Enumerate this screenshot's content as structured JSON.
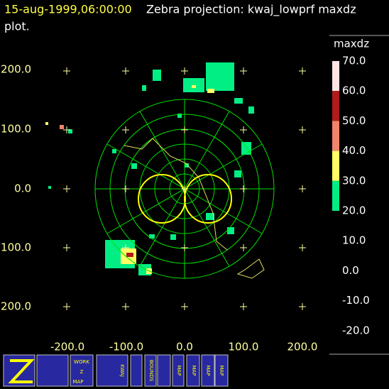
{
  "header": {
    "timestamp": "15-aug-1999,06:00:00",
    "title_lines": [
      "Zebra projection: kwaj_lowprf maxdz",
      "plot."
    ]
  },
  "axes": {
    "x_labels": [
      "-200.0",
      "-100.0",
      "0.0",
      "100.0",
      "200.0"
    ],
    "y_labels": [
      "200.0",
      "100.0",
      "0.0",
      "100.0",
      "200.0"
    ]
  },
  "colorbar": {
    "label": "maxdz",
    "labels": [
      "70.0",
      "60.0",
      "50.0",
      "40.0",
      "30.0",
      "20.0",
      "10.0",
      "0.0",
      "-10.0",
      "-20.0"
    ],
    "colors": [
      "#ffe4e4",
      "#b01c1c",
      "#f0846c",
      "#ffff64",
      "#00ee84"
    ]
  },
  "toolbar": {
    "labels": [
      "WORK",
      "Z",
      "MAP",
      "KWAJ",
      "BOUNDS",
      "MAP",
      "MAP",
      "MAP",
      "MAP"
    ]
  }
}
